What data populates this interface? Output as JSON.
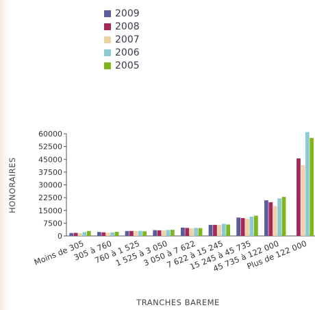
{
  "chart_data": {
    "type": "bar",
    "title": "",
    "xlabel": "TRANCHES BAREME",
    "ylabel": "HONORAIRES",
    "ylim": [
      0,
      60000
    ],
    "yticks": [
      0,
      7500,
      15000,
      22500,
      30000,
      37500,
      45000,
      52500,
      60000
    ],
    "ytick_labels": [
      "0",
      "7500",
      "15000",
      "22500",
      "30000",
      "37500",
      "45000",
      "52500",
      "60000"
    ],
    "grid": false,
    "legend_position": "top-left",
    "categories": [
      "Moins de 305",
      "305 à 760",
      "760 à 1 525",
      "1 525 à 3 050",
      "3 050 à 7 622",
      "7 622 à 15 245",
      "15 245 à 45 735",
      "45 735 à 122 000",
      "Plus de 122 000"
    ],
    "series": [
      {
        "name": "2009",
        "color": "#5a5d9c",
        "values": [
          1700,
          2300,
          2900,
          3400,
          4900,
          6500,
          10800,
          20900,
          0
        ]
      },
      {
        "name": "2008",
        "color": "#a5285a",
        "values": [
          1800,
          2100,
          2900,
          3300,
          4700,
          6500,
          10500,
          19800,
          45500
        ]
      },
      {
        "name": "2007",
        "color": "#f0d2a6",
        "values": [
          1600,
          1900,
          2800,
          3300,
          4400,
          6500,
          10100,
          17600,
          41500
        ]
      },
      {
        "name": "2006",
        "color": "#8ccbd3",
        "values": [
          2300,
          2100,
          3000,
          3500,
          4700,
          7100,
          11300,
          22000,
          61000
        ]
      },
      {
        "name": "2005",
        "color": "#7fb51f",
        "values": [
          2900,
          2400,
          2700,
          3600,
          4600,
          6700,
          11900,
          22900,
          57500
        ]
      }
    ]
  }
}
